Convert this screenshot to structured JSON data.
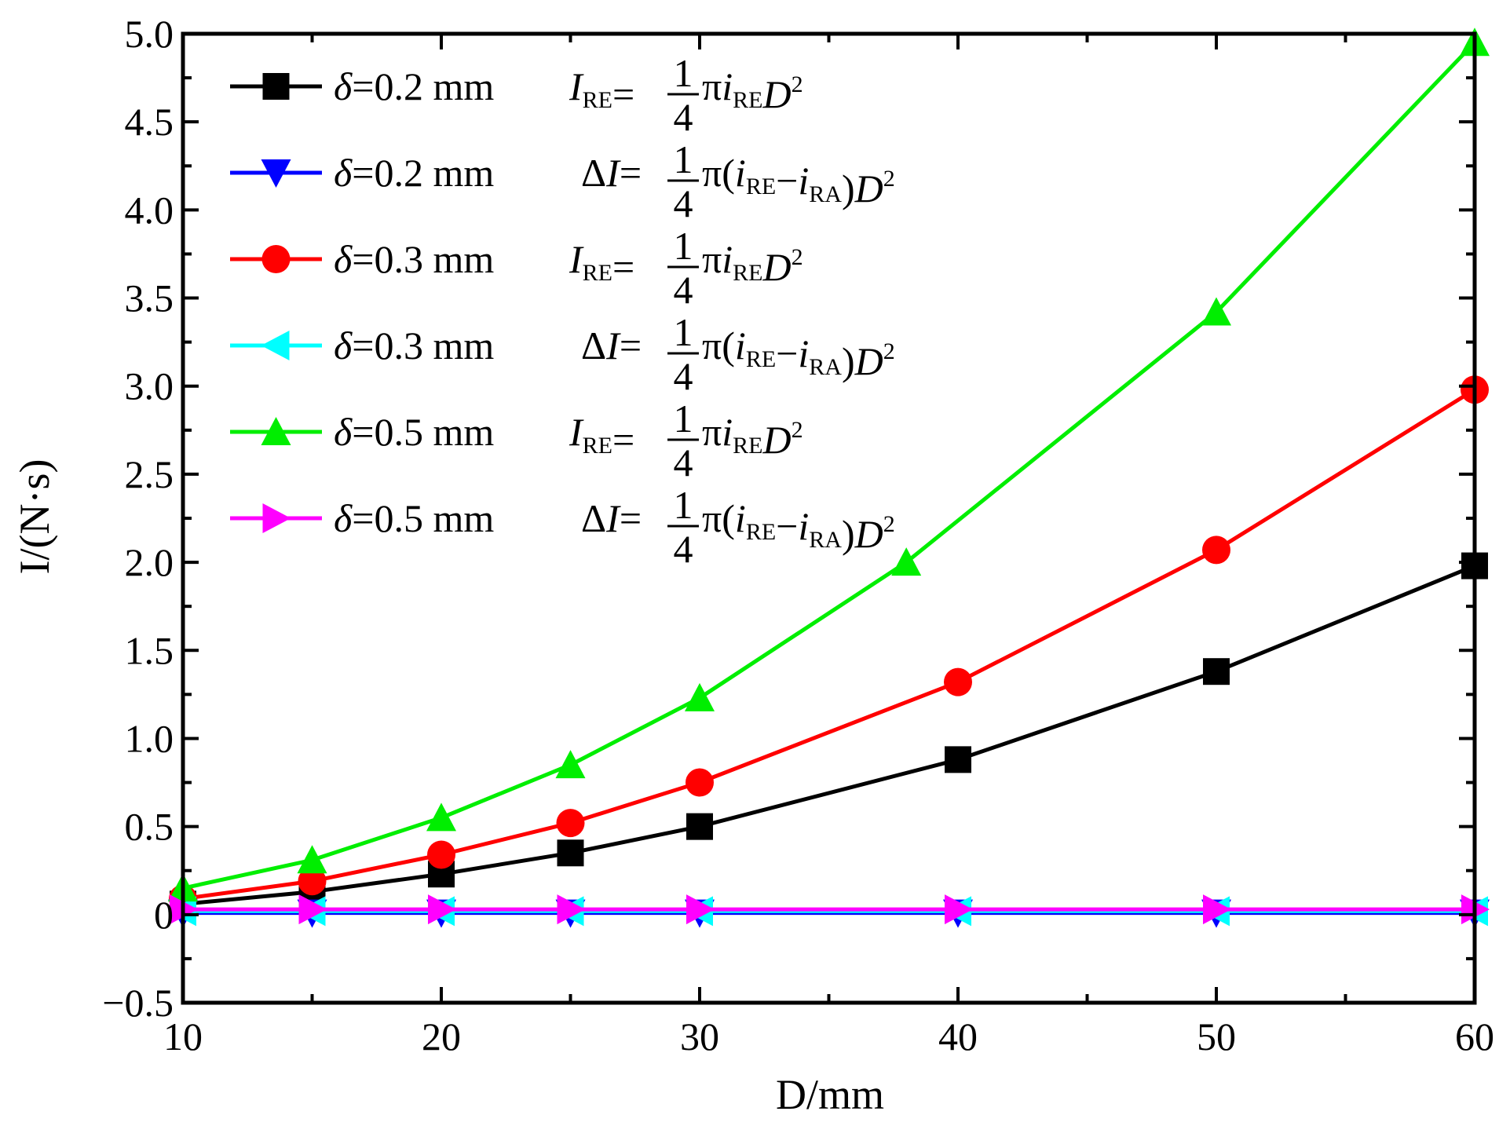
{
  "chart_data": {
    "type": "line",
    "xlabel": "D/mm",
    "ylabel": "I/(N·s)",
    "xlim": [
      10,
      60
    ],
    "ylim": [
      -0.5,
      5.0
    ],
    "xticks": [
      10,
      20,
      30,
      40,
      50,
      60
    ],
    "xtick_labels": [
      "10",
      "20",
      "30",
      "40",
      "50",
      "60"
    ],
    "yticks": [
      -0.5,
      0,
      0.5,
      1.0,
      1.5,
      2.0,
      2.5,
      3.0,
      3.5,
      4.0,
      4.5,
      5.0
    ],
    "ytick_labels": [
      "−0.5",
      "0",
      "0.5",
      "1.0",
      "1.5",
      "2.0",
      "2.5",
      "3.0",
      "3.5",
      "4.0",
      "4.5",
      "5.0"
    ],
    "grid": false,
    "legend_position": "top-left",
    "series": [
      {
        "name": "δ=0.2 mm  I_RE = 1/4 π i_RE D²",
        "legend_label": "δ=0.2 mm",
        "formula": "IRE",
        "color": "#000000",
        "marker": "square",
        "x": [
          10,
          15,
          20,
          25,
          30,
          40,
          50,
          60
        ],
        "y": [
          0.06,
          0.13,
          0.23,
          0.35,
          0.5,
          0.88,
          1.38,
          1.98
        ]
      },
      {
        "name": "δ=0.2 mm  ΔI = 1/4 π (i_RE − i_RA) D²",
        "legend_label": "δ=0.2 mm",
        "formula": "dI",
        "color": "#0000ff",
        "marker": "triangle-down",
        "x": [
          10,
          15,
          20,
          25,
          30,
          40,
          50,
          60
        ],
        "y": [
          0.01,
          0.01,
          0.01,
          0.01,
          0.01,
          0.01,
          0.01,
          0.01
        ]
      },
      {
        "name": "δ=0.3 mm  I_RE = 1/4 π i_RE D²",
        "legend_label": "δ=0.3 mm",
        "formula": "IRE",
        "color": "#ff0000",
        "marker": "circle",
        "x": [
          10,
          15,
          20,
          25,
          30,
          40,
          50,
          60
        ],
        "y": [
          0.09,
          0.19,
          0.34,
          0.52,
          0.75,
          1.32,
          2.07,
          2.98
        ]
      },
      {
        "name": "δ=0.3 mm  ΔI = 1/4 π (i_RE − i_RA) D²",
        "legend_label": "δ=0.3 mm",
        "formula": "dI",
        "color": "#00ffff",
        "marker": "triangle-left",
        "x": [
          10,
          15,
          20,
          25,
          30,
          40,
          50,
          60
        ],
        "y": [
          0.02,
          0.02,
          0.02,
          0.02,
          0.02,
          0.02,
          0.02,
          0.02
        ]
      },
      {
        "name": "δ=0.5 mm  I_RE = 1/4 π i_RE D²",
        "legend_label": "δ=0.5 mm",
        "formula": "IRE",
        "color": "#00ee00",
        "marker": "triangle-up",
        "x": [
          10,
          15,
          20,
          25,
          30,
          38,
          50,
          60
        ],
        "y": [
          0.15,
          0.31,
          0.55,
          0.85,
          1.23,
          2.0,
          3.42,
          4.95
        ]
      },
      {
        "name": "δ=0.5 mm  ΔI = 1/4 π (i_RE − i_RA) D²",
        "legend_label": "δ=0.5 mm",
        "formula": "dI",
        "color": "#ff00ff",
        "marker": "triangle-right",
        "x": [
          10,
          15,
          20,
          25,
          30,
          40,
          50,
          60
        ],
        "y": [
          0.03,
          0.03,
          0.03,
          0.03,
          0.03,
          0.03,
          0.03,
          0.03
        ]
      }
    ]
  }
}
